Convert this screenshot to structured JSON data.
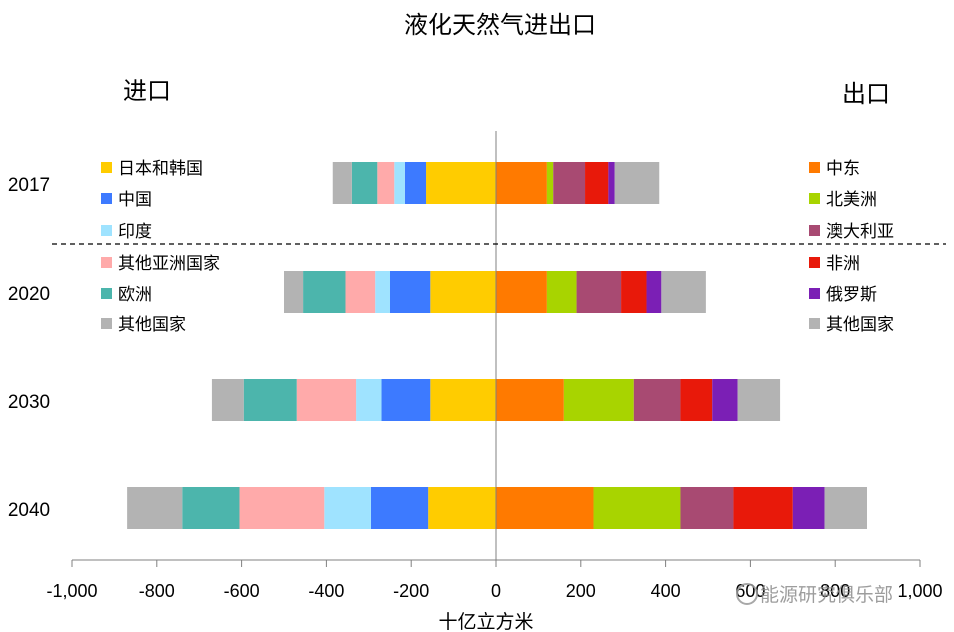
{
  "chart_data": {
    "type": "bar",
    "orientation": "horizontal-stacked-diverging",
    "title": "液化天然气进出口",
    "left_label": "进口",
    "right_label": "出口",
    "xlabel": "十亿立方米",
    "xlim": [
      -1000,
      1000
    ],
    "xticks": [
      -1000,
      -800,
      -600,
      -400,
      -200,
      0,
      200,
      400,
      600,
      800,
      1000
    ],
    "xtick_labels": [
      "-1,000",
      "-800",
      "-600",
      "-400",
      "-200",
      "0",
      "200",
      "400",
      "600",
      "800",
      "1,000"
    ],
    "categories": [
      "2017",
      "2020",
      "2030",
      "2040"
    ],
    "import_series": [
      {
        "name": "日本和韩国",
        "color": "#ffcc00",
        "values": [
          -165,
          -155,
          -155,
          -160
        ]
      },
      {
        "name": "中国",
        "color": "#3d7aff",
        "values": [
          -50,
          -95,
          -115,
          -135
        ]
      },
      {
        "name": "印度",
        "color": "#9fe3ff",
        "values": [
          -25,
          -35,
          -60,
          -110
        ]
      },
      {
        "name": "其他亚洲国家",
        "color": "#ffaaaa",
        "values": [
          -40,
          -70,
          -140,
          -200
        ]
      },
      {
        "name": "欧洲",
        "color": "#4cb5ac",
        "values": [
          -60,
          -100,
          -125,
          -135
        ]
      },
      {
        "name": "其他国家",
        "color": "#b3b3b3",
        "values": [
          -45,
          -45,
          -75,
          -130
        ]
      }
    ],
    "export_series": [
      {
        "name": "中东",
        "color": "#ff7a00",
        "values": [
          120,
          120,
          160,
          230
        ]
      },
      {
        "name": "北美洲",
        "color": "#a8d400",
        "values": [
          15,
          70,
          165,
          205
        ]
      },
      {
        "name": "澳大利亚",
        "color": "#a84a72",
        "values": [
          75,
          105,
          110,
          125
        ]
      },
      {
        "name": "非洲",
        "color": "#e8190a",
        "values": [
          55,
          60,
          75,
          140
        ]
      },
      {
        "name": "俄罗斯",
        "color": "#7b1fb5",
        "values": [
          15,
          35,
          60,
          75
        ]
      },
      {
        "name": "其他国家",
        "color": "#b3b3b3",
        "values": [
          105,
          105,
          100,
          100
        ]
      }
    ],
    "grid": false,
    "legend": {
      "import_position": "left",
      "export_position": "right"
    }
  },
  "watermark": "能源研究俱乐部"
}
